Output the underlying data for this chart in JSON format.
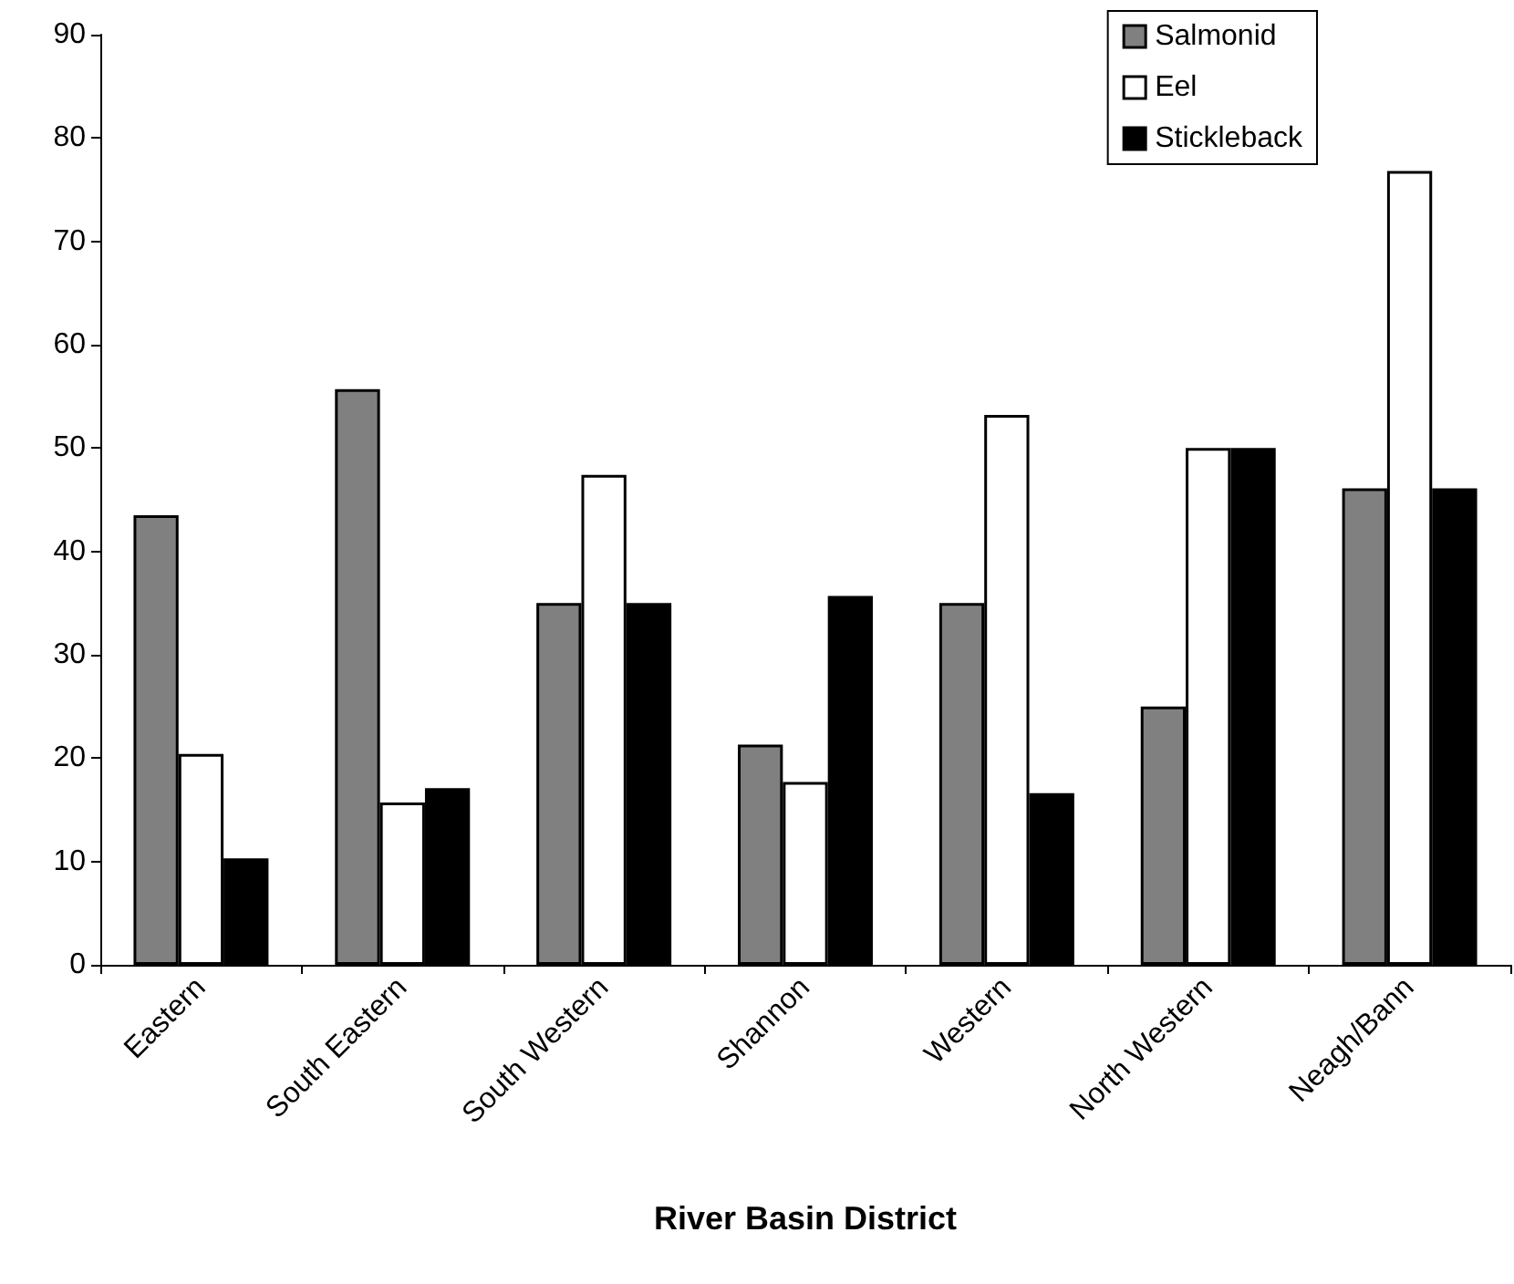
{
  "chart_data": {
    "type": "bar",
    "xlabel": "River Basin District",
    "categories": [
      "Eastern",
      "South Eastern",
      "South Western",
      "Shannon",
      "Western",
      "North Western",
      "Neagh/Bann"
    ],
    "series": [
      {
        "name": "Salmonid",
        "color": "#808080",
        "values": [
          43.5,
          55.7,
          35,
          21.3,
          35,
          25,
          46.1
        ]
      },
      {
        "name": "Eel",
        "color": "#ffffff",
        "values": [
          20.4,
          15.7,
          47.4,
          17.7,
          53.2,
          50,
          76.8
        ]
      },
      {
        "name": "Stickleback",
        "color": "#000000",
        "values": [
          10.3,
          17.1,
          35,
          35.7,
          16.6,
          50,
          46.1
        ]
      }
    ],
    "ylim": [
      0,
      90
    ],
    "yticks": [
      0,
      10,
      20,
      30,
      40,
      50,
      60,
      70,
      80,
      90
    ],
    "grid": false,
    "legend": "top right"
  }
}
